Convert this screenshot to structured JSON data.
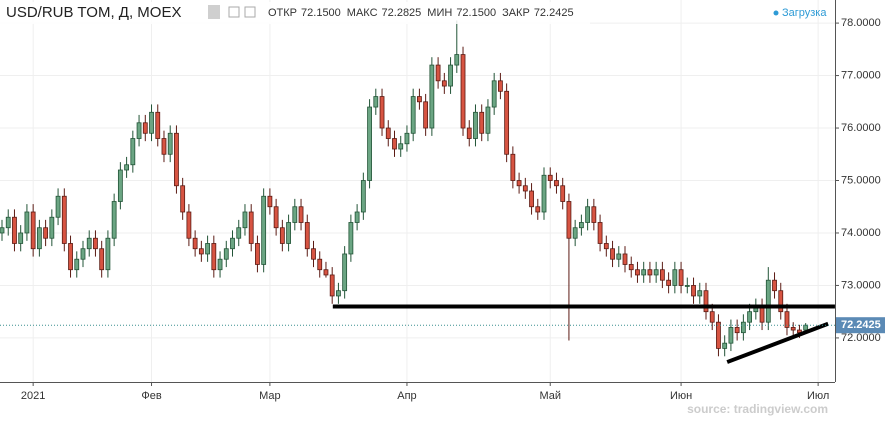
{
  "chart_data": {
    "type": "candlestick",
    "title": "USD/RUB TOM, Д, MOEX",
    "header_names": [
      "ОТКР",
      "МАКС",
      "МИН",
      "ЗАКР"
    ],
    "header_values": [
      {
        "value": 72.15,
        "label": "72.1500"
      },
      {
        "value": 72.2825,
        "label": "72.2825"
      },
      {
        "value": 72.15,
        "label": "72.1500"
      },
      {
        "value": 72.2425,
        "label": "72.2425"
      }
    ],
    "status": "Загрузка",
    "source": "source: tradingview.com",
    "up_color": "#6ba583",
    "down_color": "#d75442",
    "grid": true,
    "ylim": [
      71.16,
      78.44
    ],
    "yticks": [
      {
        "value": 72,
        "label": "72.0000"
      },
      {
        "value": 73,
        "label": "73.0000"
      },
      {
        "value": 74,
        "label": "74.0000"
      },
      {
        "value": 75,
        "label": "75.0000"
      },
      {
        "value": 76,
        "label": "76.0000"
      },
      {
        "value": 77,
        "label": "77.0000"
      },
      {
        "value": 78,
        "label": "78.0000"
      }
    ],
    "last_price": {
      "value": 72.2425,
      "label": "72.2425"
    },
    "categories": [
      null,
      null,
      null,
      null,
      null,
      "2021",
      null,
      null,
      null,
      null,
      null,
      null,
      null,
      null,
      null,
      null,
      null,
      null,
      null,
      null,
      null,
      null,
      null,
      null,
      "Фев",
      null,
      null,
      null,
      null,
      null,
      null,
      null,
      null,
      null,
      null,
      null,
      null,
      null,
      null,
      null,
      null,
      null,
      null,
      "Мар",
      null,
      null,
      null,
      null,
      null,
      null,
      null,
      null,
      null,
      null,
      null,
      null,
      null,
      null,
      null,
      null,
      null,
      null,
      null,
      null,
      null,
      "Апр",
      null,
      null,
      null,
      null,
      null,
      null,
      null,
      null,
      null,
      null,
      null,
      null,
      null,
      null,
      null,
      null,
      null,
      null,
      null,
      null,
      null,
      null,
      "Май",
      null,
      null,
      null,
      null,
      null,
      null,
      null,
      null,
      null,
      null,
      null,
      null,
      null,
      null,
      null,
      null,
      null,
      null,
      null,
      null,
      "Июн",
      null,
      null,
      null,
      null,
      null,
      null,
      null,
      null,
      null,
      null,
      null,
      null,
      null,
      null,
      null,
      null,
      null,
      null,
      null,
      null,
      null,
      "Июл"
    ],
    "ohlc": [
      [
        74.0,
        74.25,
        73.85,
        74.1
      ],
      [
        74.1,
        74.45,
        73.95,
        74.3
      ],
      [
        74.3,
        74.45,
        73.65,
        73.8
      ],
      [
        73.8,
        74.15,
        73.65,
        74.0
      ],
      [
        74.0,
        74.55,
        73.85,
        74.4
      ],
      [
        74.4,
        74.55,
        73.55,
        73.7
      ],
      [
        73.7,
        74.25,
        73.55,
        74.1
      ],
      [
        74.1,
        74.25,
        73.75,
        73.9
      ],
      [
        73.9,
        74.45,
        73.75,
        74.3
      ],
      [
        74.3,
        74.85,
        74.15,
        74.7
      ],
      [
        74.7,
        74.85,
        73.65,
        73.8
      ],
      [
        73.8,
        73.95,
        73.15,
        73.3
      ],
      [
        73.3,
        73.65,
        73.15,
        73.5
      ],
      [
        73.5,
        73.85,
        73.35,
        73.7
      ],
      [
        73.7,
        74.05,
        73.55,
        73.9
      ],
      [
        73.9,
        74.05,
        73.55,
        73.7
      ],
      [
        73.7,
        73.85,
        73.15,
        73.3
      ],
      [
        73.3,
        74.05,
        73.15,
        73.9
      ],
      [
        73.9,
        74.75,
        73.75,
        74.6
      ],
      [
        74.6,
        75.35,
        74.45,
        75.2
      ],
      [
        75.2,
        75.45,
        75.05,
        75.3
      ],
      [
        75.3,
        75.95,
        75.15,
        75.8
      ],
      [
        75.8,
        76.25,
        75.65,
        76.1
      ],
      [
        76.1,
        76.25,
        75.75,
        75.9
      ],
      [
        75.9,
        76.45,
        75.75,
        76.3
      ],
      [
        76.3,
        76.45,
        75.65,
        75.8
      ],
      [
        75.8,
        75.95,
        75.35,
        75.5
      ],
      [
        75.5,
        76.05,
        75.35,
        75.9
      ],
      [
        75.9,
        76.05,
        74.75,
        74.9
      ],
      [
        74.9,
        75.05,
        74.25,
        74.4
      ],
      [
        74.4,
        74.55,
        73.75,
        73.9
      ],
      [
        73.9,
        74.05,
        73.55,
        73.7
      ],
      [
        73.7,
        73.85,
        73.45,
        73.6
      ],
      [
        73.6,
        73.95,
        73.45,
        73.8
      ],
      [
        73.8,
        73.95,
        73.15,
        73.3
      ],
      [
        73.3,
        73.65,
        73.15,
        73.5
      ],
      [
        73.5,
        73.85,
        73.35,
        73.7
      ],
      [
        73.7,
        74.05,
        73.55,
        73.9
      ],
      [
        73.9,
        74.25,
        73.75,
        74.1
      ],
      [
        74.1,
        74.55,
        73.95,
        74.4
      ],
      [
        74.4,
        74.55,
        73.65,
        73.8
      ],
      [
        73.8,
        73.95,
        73.25,
        73.4
      ],
      [
        73.4,
        74.85,
        73.25,
        74.7
      ],
      [
        74.7,
        74.85,
        74.35,
        74.5
      ],
      [
        74.5,
        74.65,
        73.95,
        74.1
      ],
      [
        74.1,
        74.25,
        73.65,
        73.8
      ],
      [
        73.8,
        74.35,
        73.65,
        74.2
      ],
      [
        74.2,
        74.65,
        74.05,
        74.5
      ],
      [
        74.5,
        74.65,
        74.05,
        74.2
      ],
      [
        74.2,
        74.35,
        73.55,
        73.7
      ],
      [
        73.7,
        73.85,
        73.35,
        73.5
      ],
      [
        73.5,
        73.65,
        73.15,
        73.3
      ],
      [
        73.3,
        73.45,
        73.15,
        73.2
      ],
      [
        73.2,
        73.35,
        72.65,
        72.8
      ],
      [
        72.8,
        73.05,
        72.65,
        72.9
      ],
      [
        72.9,
        73.75,
        72.75,
        73.6
      ],
      [
        73.6,
        74.35,
        73.45,
        74.2
      ],
      [
        74.2,
        74.55,
        74.05,
        74.4
      ],
      [
        74.4,
        75.15,
        74.25,
        75.0
      ],
      [
        75.0,
        76.55,
        74.85,
        76.4
      ],
      [
        76.4,
        76.75,
        76.25,
        76.6
      ],
      [
        76.6,
        76.75,
        75.85,
        76.0
      ],
      [
        76.0,
        76.15,
        75.65,
        75.8
      ],
      [
        75.8,
        75.95,
        75.45,
        75.6
      ],
      [
        75.6,
        75.85,
        75.45,
        75.7
      ],
      [
        75.7,
        76.05,
        75.55,
        75.9
      ],
      [
        75.9,
        76.75,
        75.75,
        76.6
      ],
      [
        76.6,
        76.75,
        76.35,
        76.5
      ],
      [
        76.5,
        76.65,
        75.85,
        76.0
      ],
      [
        76.0,
        77.35,
        75.85,
        77.2
      ],
      [
        77.2,
        77.35,
        76.75,
        76.9
      ],
      [
        76.9,
        77.05,
        76.65,
        76.8
      ],
      [
        76.8,
        77.35,
        76.65,
        77.2
      ],
      [
        77.2,
        78.05,
        77.05,
        77.4
      ],
      [
        77.4,
        77.55,
        75.85,
        76.0
      ],
      [
        76.0,
        76.15,
        75.65,
        75.8
      ],
      [
        75.8,
        76.45,
        75.65,
        76.3
      ],
      [
        76.3,
        76.45,
        75.75,
        75.9
      ],
      [
        75.9,
        76.55,
        75.75,
        76.4
      ],
      [
        76.4,
        77.05,
        76.25,
        76.9
      ],
      [
        76.9,
        77.05,
        76.55,
        76.7
      ],
      [
        76.7,
        76.85,
        75.35,
        75.5
      ],
      [
        75.5,
        75.65,
        74.85,
        75.0
      ],
      [
        75.0,
        75.15,
        74.75,
        74.9
      ],
      [
        74.9,
        75.05,
        74.65,
        74.8
      ],
      [
        74.8,
        74.95,
        74.35,
        74.5
      ],
      [
        74.5,
        74.65,
        74.25,
        74.4
      ],
      [
        74.4,
        75.25,
        74.25,
        75.1
      ],
      [
        75.1,
        75.25,
        74.85,
        75.0
      ],
      [
        75.0,
        75.15,
        74.75,
        74.9
      ],
      [
        74.9,
        75.05,
        74.45,
        74.6
      ],
      [
        74.6,
        74.75,
        71.95,
        73.9
      ],
      [
        73.9,
        74.25,
        73.75,
        74.1
      ],
      [
        74.1,
        74.35,
        73.95,
        74.2
      ],
      [
        74.2,
        74.65,
        74.05,
        74.5
      ],
      [
        74.5,
        74.65,
        74.05,
        74.2
      ],
      [
        74.2,
        74.35,
        73.65,
        73.8
      ],
      [
        73.8,
        73.95,
        73.55,
        73.7
      ],
      [
        73.7,
        73.85,
        73.35,
        73.5
      ],
      [
        73.5,
        73.75,
        73.35,
        73.6
      ],
      [
        73.6,
        73.75,
        73.25,
        73.4
      ],
      [
        73.4,
        73.55,
        73.15,
        73.3
      ],
      [
        73.3,
        73.45,
        73.05,
        73.2
      ],
      [
        73.2,
        73.45,
        73.05,
        73.3
      ],
      [
        73.3,
        73.45,
        73.05,
        73.2
      ],
      [
        73.2,
        73.45,
        73.05,
        73.3
      ],
      [
        73.3,
        73.45,
        72.95,
        73.1
      ],
      [
        73.1,
        73.25,
        72.85,
        73.0
      ],
      [
        73.0,
        73.45,
        72.85,
        73.3
      ],
      [
        73.3,
        73.45,
        72.85,
        73.0
      ],
      [
        73.0,
        73.15,
        72.85,
        73.0
      ],
      [
        73.0,
        73.15,
        72.65,
        72.8
      ],
      [
        72.8,
        73.05,
        72.65,
        72.9
      ],
      [
        72.9,
        73.05,
        72.35,
        72.5
      ],
      [
        72.5,
        72.65,
        72.15,
        72.3
      ],
      [
        72.3,
        72.45,
        71.65,
        71.8
      ],
      [
        71.8,
        72.05,
        71.65,
        71.9
      ],
      [
        71.9,
        72.35,
        71.75,
        72.2
      ],
      [
        72.2,
        72.35,
        71.95,
        72.1
      ],
      [
        72.1,
        72.45,
        71.95,
        72.3
      ],
      [
        72.3,
        72.65,
        72.15,
        72.5
      ],
      [
        72.5,
        72.75,
        72.35,
        72.6
      ],
      [
        72.6,
        72.75,
        72.15,
        72.3
      ],
      [
        72.3,
        73.35,
        72.15,
        73.1
      ],
      [
        73.1,
        73.25,
        72.75,
        72.9
      ],
      [
        72.9,
        73.05,
        72.35,
        72.5
      ],
      [
        72.5,
        72.65,
        72.05,
        72.2
      ],
      [
        72.2,
        72.3,
        72.05,
        72.15
      ],
      [
        72.15,
        72.25,
        72.0,
        72.1
      ],
      [
        72.15,
        72.2825,
        72.15,
        72.2425
      ],
      null,
      null
    ],
    "trend_lines": [
      {
        "x": [
          53.1,
          133.7
        ],
        "y": [
          72.6,
          72.6
        ]
      },
      {
        "x": [
          116.4,
          132.6
        ],
        "y": [
          71.54,
          72.27
        ]
      }
    ]
  }
}
